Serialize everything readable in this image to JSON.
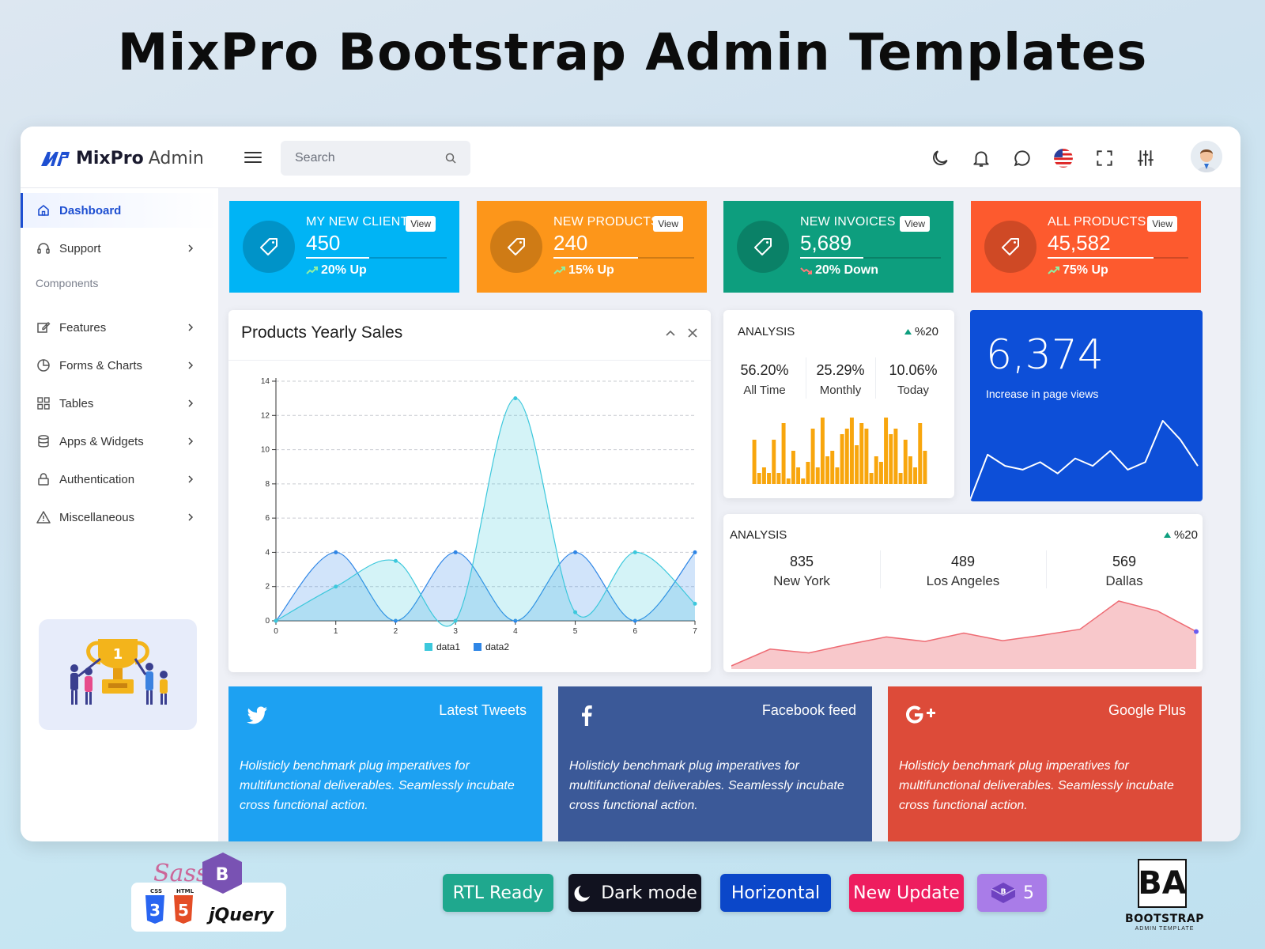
{
  "banner": {
    "title": "MixPro Bootstrap Admin Templates"
  },
  "brand": {
    "name_bold": "MixPro",
    "name_light": "Admin"
  },
  "search": {
    "placeholder": "Search"
  },
  "topbar_icons": [
    "moon-icon",
    "bell-icon",
    "chat-icon",
    "us-flag-icon",
    "fullscreen-icon",
    "sliders-icon"
  ],
  "sidebar": {
    "items": [
      {
        "label": "Dashboard",
        "icon": "home-icon",
        "active": true
      },
      {
        "label": "Support",
        "icon": "headset-icon"
      }
    ],
    "section_label": "Components",
    "components": [
      {
        "label": "Features",
        "icon": "edit-icon"
      },
      {
        "label": "Forms & Charts",
        "icon": "pie-chart-icon"
      },
      {
        "label": "Tables",
        "icon": "grid-icon"
      },
      {
        "label": "Apps & Widgets",
        "icon": "database-icon"
      },
      {
        "label": "Authentication",
        "icon": "lock-icon"
      },
      {
        "label": "Miscellaneous",
        "icon": "warning-icon"
      }
    ],
    "promo_trophy_number": "1"
  },
  "stat_cards": [
    {
      "title": "My New Clients",
      "value": "450",
      "trend": "20% Up",
      "direction": "up",
      "color": "#00b4f5",
      "progress": 0.45,
      "view_label": "View"
    },
    {
      "title": "New Products",
      "value": "240",
      "trend": "15% Up",
      "direction": "up",
      "color": "#fd961a",
      "progress": 0.6,
      "view_label": "View"
    },
    {
      "title": "New Invoices",
      "value": "5,689",
      "trend": "20% Down",
      "direction": "down",
      "color": "#0d9e7e",
      "progress": 0.45,
      "view_label": "View"
    },
    {
      "title": "All Products",
      "value": "45,582",
      "trend": "75% Up",
      "direction": "up",
      "color": "#fd5a2e",
      "progress": 0.75,
      "view_label": "View"
    }
  ],
  "sales_panel": {
    "title": "Products Yearly Sales"
  },
  "chart_data": [
    {
      "type": "area",
      "title": "Products Yearly Sales",
      "x": [
        0,
        1,
        2,
        3,
        4,
        5,
        6,
        7
      ],
      "series": [
        {
          "name": "data1",
          "values": [
            0,
            2,
            3.5,
            0,
            13,
            0.5,
            4,
            1
          ],
          "color": "#3cc8dc"
        },
        {
          "name": "data2",
          "values": [
            0,
            4,
            0,
            4,
            0,
            4,
            0,
            4
          ],
          "color": "#2f86e6"
        }
      ],
      "xlim": [
        0,
        7
      ],
      "ylim": [
        0,
        14
      ],
      "yticks": [
        0,
        2,
        4,
        6,
        8,
        10,
        12,
        14
      ],
      "grid": true,
      "legend": "bottom"
    },
    {
      "type": "bar",
      "values": [
        8,
        2,
        3,
        2,
        8,
        2,
        11,
        1,
        6,
        3,
        1,
        4,
        10,
        3,
        12,
        5,
        6,
        3,
        9,
        10,
        12,
        7,
        11,
        10,
        2,
        5,
        4,
        12,
        9,
        10,
        2,
        8,
        5,
        3,
        11,
        6
      ],
      "color": "#f8a60d"
    },
    {
      "type": "line",
      "values": [
        0,
        12,
        9,
        8,
        10,
        7,
        11,
        9,
        13,
        8,
        10,
        21,
        16,
        9
      ],
      "color": "#ffffff"
    },
    {
      "type": "area",
      "values": [
        0,
        22,
        17,
        28,
        38,
        32,
        43,
        33,
        40,
        48,
        85,
        72,
        45
      ],
      "color": "#f39aa0"
    }
  ],
  "analysis_small": {
    "title": "ANALYSIS",
    "badge": "%20",
    "cols": [
      {
        "value": "56.20%",
        "label": "All Time"
      },
      {
        "value": "25.29%",
        "label": "Monthly"
      },
      {
        "value": "10.06%",
        "label": "Today"
      }
    ]
  },
  "page_views": {
    "value": "6,374",
    "label": "Increase in page views"
  },
  "analysis_cities": {
    "title": "ANALYSIS",
    "badge": "%20",
    "cols": [
      {
        "value": "835",
        "label": "New York"
      },
      {
        "value": "489",
        "label": "Los Angeles"
      },
      {
        "value": "569",
        "label": "Dallas"
      }
    ]
  },
  "social": [
    {
      "title": "Latest Tweets",
      "icon": "twitter-icon",
      "color": "#1da1f2",
      "text": "Holisticly benchmark plug imperatives for multifunctional deliverables. Seamlessly incubate cross functional action."
    },
    {
      "title": "Facebook feed",
      "icon": "facebook-icon",
      "color": "#3b5998",
      "text": "Holisticly benchmark plug imperatives for multifunctional deliverables. Seamlessly incubate cross functional action."
    },
    {
      "title": "Google Plus",
      "icon": "google-plus-icon",
      "color": "#dd4b39",
      "text": "Holisticly benchmark plug imperatives for multifunctional deliverables. Seamlessly incubate cross functional action."
    }
  ],
  "tech_logos": {
    "sass": "Sass",
    "css": "CSS",
    "html": "HTML",
    "jquery": "jQuery",
    "css_num": "3",
    "html_num": "5"
  },
  "feature_pills": [
    {
      "label": "RTL Ready",
      "color": "#1fa88e"
    },
    {
      "label": "Dark mode",
      "color": "#11121f"
    },
    {
      "label": "Horizontal",
      "color": "#0b47c9"
    },
    {
      "label": "New Update",
      "color": "#ee1d5f"
    },
    {
      "label": "5",
      "color": "#a97ce8"
    }
  ],
  "bootstrap_badge": {
    "letters": "BA",
    "label": "BOOTSTRAP",
    "sub": "ADMIN TEMPLATE"
  }
}
